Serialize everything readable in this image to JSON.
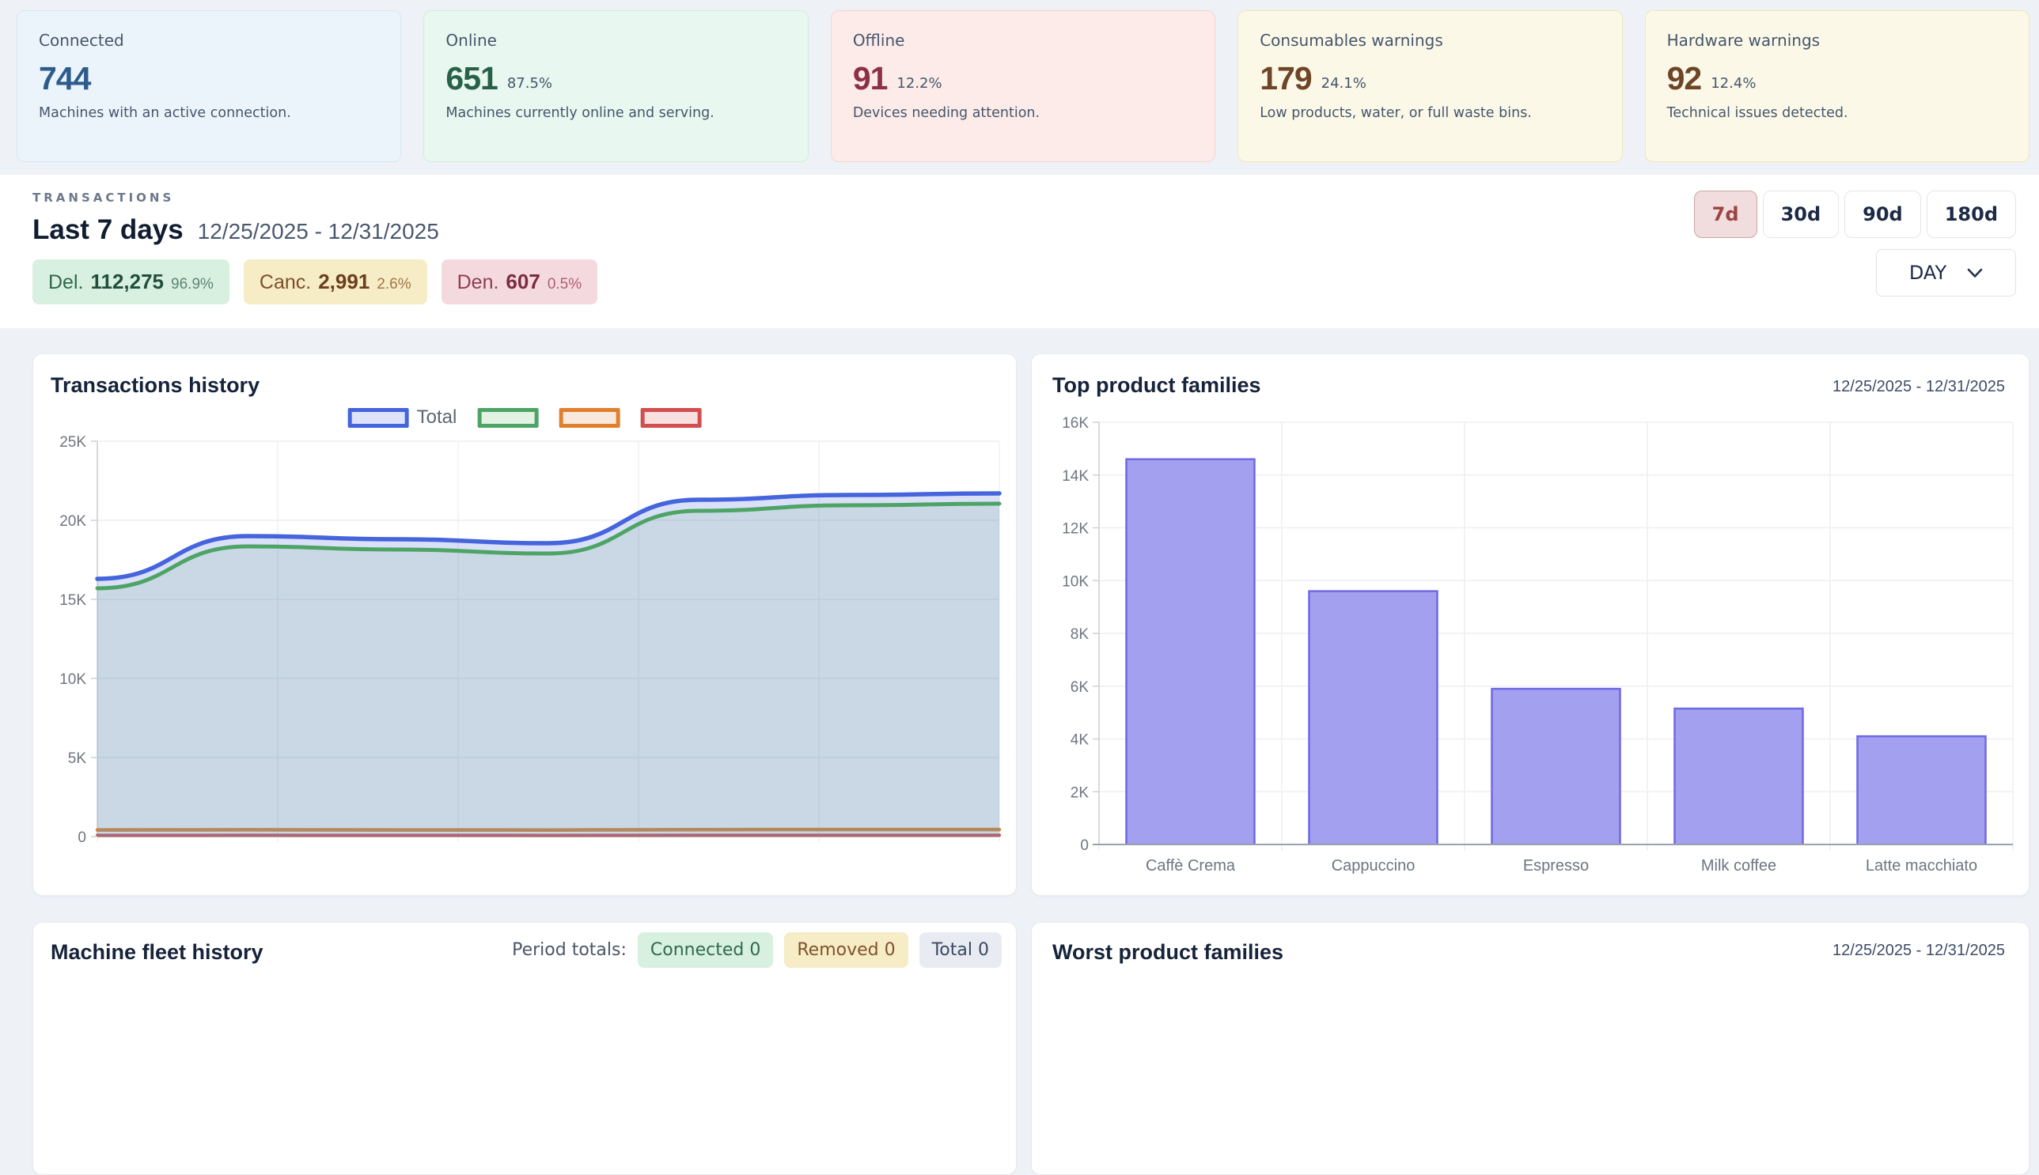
{
  "stats_cards": [
    {
      "title": "Connected",
      "value": "744",
      "percent": "",
      "description": "Machines with an active connection.",
      "theme": "blue"
    },
    {
      "title": "Online",
      "value": "651",
      "percent": "87.5%",
      "description": "Machines currently online and serving.",
      "theme": "green"
    },
    {
      "title": "Offline",
      "value": "91",
      "percent": "12.2%",
      "description": "Devices needing attention.",
      "theme": "red"
    },
    {
      "title": "Consumables warnings",
      "value": "179",
      "percent": "24.1%",
      "description": "Low products, water, or full waste bins.",
      "theme": "yellow"
    },
    {
      "title": "Hardware warnings",
      "value": "92",
      "percent": "12.4%",
      "description": "Technical issues detected.",
      "theme": "yellow"
    }
  ],
  "transactions": {
    "section_label": "TRANSACTIONS",
    "period_title": "Last 7 days",
    "period_range": "12/25/2025 - 12/31/2025",
    "badges": [
      {
        "label": "Del.",
        "value": "112,275",
        "percent": "96.9%",
        "theme": "green"
      },
      {
        "label": "Canc.",
        "value": "2,991",
        "percent": "2.6%",
        "theme": "yellow"
      },
      {
        "label": "Den.",
        "value": "607",
        "percent": "0.5%",
        "theme": "red"
      }
    ],
    "range_buttons": [
      {
        "label": "7d",
        "active": true
      },
      {
        "label": "30d",
        "active": false
      },
      {
        "label": "90d",
        "active": false
      },
      {
        "label": "180d",
        "active": false
      }
    ],
    "granularity": "DAY"
  },
  "chart_data": [
    {
      "type": "area",
      "title": "Transactions history",
      "x_count": 7,
      "series": [
        {
          "name": "Total",
          "color": "#4565dd",
          "legend_fill": "#dfe3f9",
          "values": [
            16300,
            19000,
            18800,
            18550,
            21300,
            21600,
            21700
          ]
        },
        {
          "name": "",
          "color": "#4da465",
          "legend_fill": "#e3f2e2",
          "values": [
            15700,
            18350,
            18150,
            17900,
            20600,
            20950,
            21050
          ]
        },
        {
          "name": "",
          "color": "#e0802e",
          "legend_fill": "#f9e9dd",
          "values": [
            420,
            430,
            420,
            415,
            440,
            445,
            445
          ]
        },
        {
          "name": "",
          "color": "#d14f4f",
          "legend_fill": "#f8e0e0",
          "values": [
            80,
            85,
            80,
            78,
            85,
            88,
            88
          ]
        }
      ],
      "ylim": [
        0,
        25000
      ],
      "yticks": [
        "25K",
        "20K",
        "15K",
        "10K",
        "5K",
        "0"
      ],
      "area_fill": "rgba(106,148,179,0.36)",
      "band_fill": "rgba(69,99,218,0.2)",
      "grid": true,
      "legend_position": "top-center",
      "x_axis_labels_visible": false
    },
    {
      "type": "bar",
      "title": "Top product families",
      "date_range": "12/25/2025 - 12/31/2025",
      "categories": [
        "Caffè Crema",
        "Cappuccino",
        "Espresso",
        "Milk coffee",
        "Latte macchiato"
      ],
      "values": [
        14600,
        9600,
        5900,
        5150,
        4100
      ],
      "ylim": [
        0,
        16000
      ],
      "yticks": [
        "16K",
        "14K",
        "12K",
        "10K",
        "8K",
        "6K",
        "4K",
        "2K",
        "0"
      ],
      "bar_fill": "#a3a0f0",
      "bar_border": "#6e69e6",
      "grid": true
    }
  ],
  "fleet": {
    "title": "Machine fleet history",
    "period_totals_label": "Period totals:",
    "badges": [
      {
        "label": "Connected",
        "value": "0",
        "theme": "green"
      },
      {
        "label": "Removed",
        "value": "0",
        "theme": "yellow"
      },
      {
        "label": "Total",
        "value": "0",
        "theme": "gray"
      }
    ]
  },
  "worst": {
    "title": "Worst product families",
    "date_range": "12/25/2025 - 12/31/2025"
  }
}
